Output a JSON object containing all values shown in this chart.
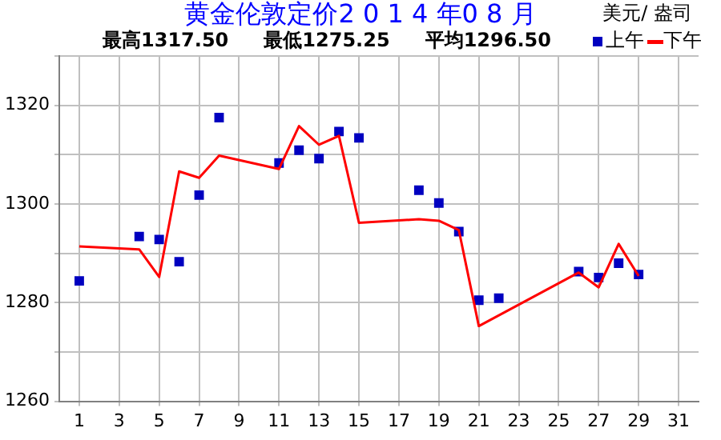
{
  "chart_data": {
    "type": "line",
    "title": "黄金伦敦定价2 0 1 4 年0 8 月",
    "ylabel": "美元/ 盎司",
    "annotations": [
      "最高1317.50",
      "最低1275.25",
      "平均1296.50"
    ],
    "series": [
      {
        "name": "上午",
        "type": "scatter",
        "marker": "square",
        "color": "#0000c0",
        "x": [
          1,
          4,
          5,
          6,
          7,
          8,
          11,
          12,
          13,
          14,
          15,
          18,
          19,
          20,
          21,
          22,
          26,
          27,
          28,
          29
        ],
        "values": [
          1284.4,
          1293.4,
          1292.8,
          1288.3,
          1301.8,
          1317.5,
          1308.3,
          1310.9,
          1309.2,
          1314.7,
          1313.4,
          1302.8,
          1300.2,
          1294.4,
          1280.5,
          1280.9,
          1286.3,
          1285.1,
          1288.0,
          1285.7
        ]
      },
      {
        "name": "下午",
        "type": "line",
        "marker": "none",
        "color": "#ff0000",
        "x": [
          1,
          4,
          5,
          6,
          7,
          8,
          11,
          12,
          13,
          14,
          15,
          18,
          19,
          20,
          21,
          26,
          27,
          28,
          29
        ],
        "values": [
          1291.4,
          1290.8,
          1285.2,
          1306.6,
          1305.3,
          1309.8,
          1307.1,
          1315.8,
          1312.0,
          1313.8,
          1296.2,
          1296.9,
          1296.6,
          1294.7,
          1275.25,
          1286.1,
          1283.1,
          1291.9,
          1285.4
        ]
      }
    ],
    "xlim": [
      0,
      32
    ],
    "xticks": [
      1,
      3,
      5,
      7,
      9,
      11,
      13,
      15,
      17,
      19,
      21,
      23,
      25,
      27,
      29,
      31
    ],
    "ylim": [
      1260,
      1330
    ],
    "yticks": [
      1260,
      {
        "value": 1270,
        "label": null
      },
      1280,
      {
        "value": 1290,
        "label": null
      },
      1300,
      {
        "value": 1310,
        "label": null
      },
      1320,
      {
        "value": 1330,
        "label": null
      }
    ],
    "grid": true,
    "legend": "top right"
  }
}
